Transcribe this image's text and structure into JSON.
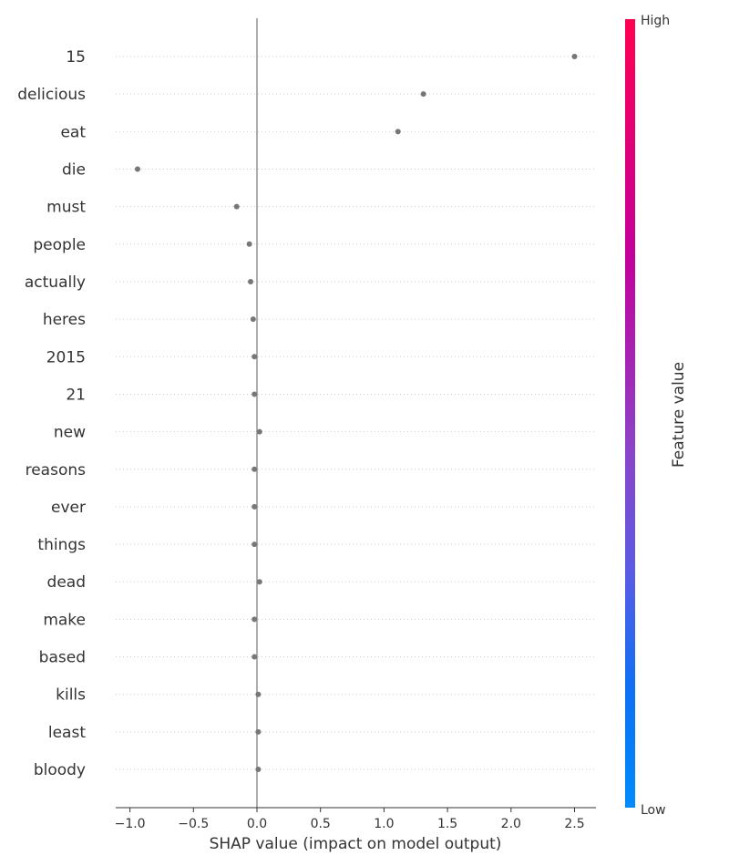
{
  "chart_data": {
    "type": "scatter",
    "title": "",
    "xlabel": "SHAP value (impact on model output)",
    "ylabel": "",
    "xlim": [
      -1.11,
      2.66
    ],
    "x_ticks": [
      -1.0,
      -0.5,
      0.0,
      0.5,
      1.0,
      1.5,
      2.0,
      2.5
    ],
    "x_tick_labels": [
      "−1.0",
      "−0.5",
      "0.0",
      "0.5",
      "1.0",
      "1.5",
      "2.0",
      "2.5"
    ],
    "zero_line": 0,
    "grid": "dotted horizontal rows",
    "point_color": "#777777",
    "features": [
      "15",
      "delicious",
      "eat",
      "die",
      "must",
      "people",
      "actually",
      "heres",
      "2015",
      "21",
      "new",
      "reasons",
      "ever",
      "things",
      "dead",
      "make",
      "based",
      "kills",
      "least",
      "bloody"
    ],
    "values": [
      2.5,
      1.31,
      1.11,
      -0.94,
      -0.16,
      -0.06,
      -0.05,
      -0.03,
      -0.02,
      -0.02,
      0.02,
      -0.02,
      -0.02,
      -0.02,
      0.02,
      -0.02,
      -0.02,
      0.01,
      0.01,
      0.01
    ],
    "colorbar": {
      "title": "Feature value",
      "high_label": "High",
      "low_label": "Low",
      "colors": [
        "#ff0051",
        "#c3009a",
        "#8b44c9",
        "#5b5be4",
        "#0d70f5",
        "#008bfb"
      ]
    }
  }
}
